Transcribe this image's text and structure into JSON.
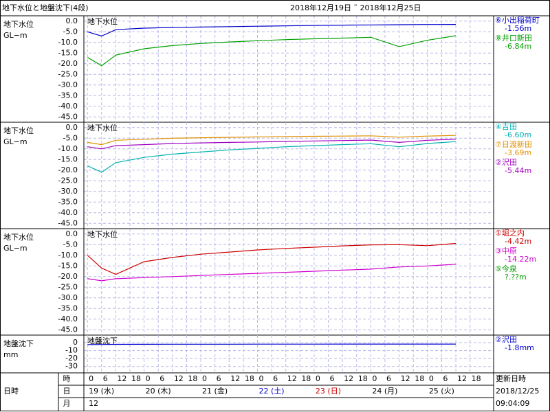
{
  "header": {
    "title": "地下水位と地盤沈下(4段)",
    "period": "2018年12月19日 ˜ 2018年12月25日"
  },
  "time_axis": {
    "xlim": [
      -1.5,
      172
    ],
    "x": [
      0,
      6,
      12,
      24,
      36,
      48,
      60,
      72,
      84,
      96,
      108,
      120,
      132,
      144,
      156
    ],
    "xticks": [
      0,
      6,
      12,
      18,
      {
        "value": 24,
        "label": "0"
      },
      {
        "value": 30,
        "label": "6"
      },
      {
        "value": 36,
        "label": "12"
      },
      {
        "value": 42,
        "label": "18"
      },
      {
        "value": 48,
        "label": "0"
      },
      {
        "value": 54,
        "label": "6"
      },
      {
        "value": 60,
        "label": "12"
      },
      {
        "value": 66,
        "label": "18"
      },
      {
        "value": 72,
        "label": "0"
      },
      {
        "value": 78,
        "label": "6"
      },
      {
        "value": 84,
        "label": "12"
      },
      {
        "value": 90,
        "label": "18"
      },
      {
        "value": 96,
        "label": "0"
      },
      {
        "value": 102,
        "label": "6"
      },
      {
        "value": 108,
        "label": "12"
      },
      {
        "value": 114,
        "label": "18"
      },
      {
        "value": 120,
        "label": "0"
      },
      {
        "value": 126,
        "label": "6"
      },
      {
        "value": 132,
        "label": "12"
      },
      {
        "value": 138,
        "label": "18"
      },
      {
        "value": 144,
        "label": "0"
      },
      {
        "value": 150,
        "label": "6"
      },
      {
        "value": 156,
        "label": "12"
      },
      {
        "value": 162,
        "label": "18"
      }
    ],
    "row_label": "日時",
    "rows": [
      "時",
      "日",
      "月"
    ],
    "days": [
      {
        "label": "19 (水)",
        "color": "#000000"
      },
      {
        "label": "20 (木)",
        "color": "#000000"
      },
      {
        "label": "21 (金)",
        "color": "#000000"
      },
      {
        "label": "22 (土)",
        "color": "#0000cc"
      },
      {
        "label": "23 (日)",
        "color": "#cc0000"
      },
      {
        "label": "24 (月)",
        "color": "#000000"
      },
      {
        "label": "25 (火)",
        "color": "#000000"
      }
    ],
    "month": "12"
  },
  "updated": {
    "label": "更新日時",
    "date": "2018/12/25",
    "time": "09:04:09"
  },
  "chart_data": [
    {
      "type": "line",
      "axis_label": [
        "地下水位",
        "GL−m"
      ],
      "inner_title": "地下水位",
      "ylim": [
        -47.5,
        2.5
      ],
      "grid": true,
      "yticks": [
        {
          "value": 0,
          "label": "0.0"
        },
        {
          "value": -5,
          "label": "-5.0"
        },
        {
          "value": -10,
          "label": "-10.0"
        },
        {
          "value": -15,
          "label": "-15.0"
        },
        {
          "value": -20,
          "label": "-20.0"
        },
        {
          "value": -25,
          "label": "-25.0"
        },
        {
          "value": -30,
          "label": "-30.0"
        },
        {
          "value": -35,
          "label": "-35.0"
        },
        {
          "value": -40,
          "label": "-40.0"
        },
        {
          "value": -45,
          "label": "-45.0"
        }
      ],
      "series": [
        {
          "name": "⑥小出稲荷町",
          "reading": "-1.56m",
          "color": "#0000cc",
          "values": [
            -5,
            -7,
            -4,
            -3.3,
            -3,
            -2.8,
            -2.6,
            -2.4,
            -2.2,
            -2.0,
            -1.9,
            -1.8,
            -1.7,
            -1.6,
            -1.56
          ]
        },
        {
          "name": "⑧井口新田",
          "reading": "-6.84m",
          "color": "#00a000",
          "values": [
            -17,
            -21,
            -16,
            -13,
            -11.5,
            -10.5,
            -9.8,
            -9.2,
            -8.7,
            -8.3,
            -8,
            -7.6,
            -12,
            -9,
            -6.84
          ]
        }
      ]
    },
    {
      "type": "line",
      "axis_label": [
        "地下水位",
        "GL−m"
      ],
      "inner_title": "地下水位",
      "ylim": [
        -47.5,
        2.5
      ],
      "grid": true,
      "yticks": [
        {
          "value": 0,
          "label": "0.0"
        },
        {
          "value": -5,
          "label": "-5.0"
        },
        {
          "value": -10,
          "label": "-10.0"
        },
        {
          "value": -15,
          "label": "-15.0"
        },
        {
          "value": -20,
          "label": "-20.0"
        },
        {
          "value": -25,
          "label": "-25.0"
        },
        {
          "value": -30,
          "label": "-30.0"
        },
        {
          "value": -35,
          "label": "-35.0"
        },
        {
          "value": -40,
          "label": "-40.0"
        },
        {
          "value": -45,
          "label": "-45.0"
        }
      ],
      "series": [
        {
          "name": "④吉田",
          "reading": "-6.60m",
          "color": "#00b0b0",
          "values": [
            -18,
            -21,
            -16.5,
            -14,
            -12.5,
            -11.5,
            -10.5,
            -9.8,
            -9,
            -8.5,
            -8,
            -7.6,
            -9,
            -7.5,
            -6.6
          ]
        },
        {
          "name": "⑦日渡新田",
          "reading": "-3.69m",
          "color": "#e09000",
          "values": [
            -7,
            -8,
            -6,
            -5.5,
            -5,
            -4.8,
            -4.6,
            -4.4,
            -4.2,
            -4.1,
            -4,
            -3.9,
            -4.5,
            -4,
            -3.69
          ]
        },
        {
          "name": "②沢田",
          "reading": "-5.44m",
          "color": "#a000c0",
          "values": [
            -9,
            -10,
            -8.5,
            -8,
            -7.5,
            -7.2,
            -7,
            -6.8,
            -6.5,
            -6.3,
            -6.1,
            -5.9,
            -7,
            -6,
            -5.44
          ]
        }
      ]
    },
    {
      "type": "line",
      "axis_label": [
        "地下水位",
        "GL−m"
      ],
      "inner_title": "地下水位",
      "ylim": [
        -47.5,
        2.5
      ],
      "grid": true,
      "yticks": [
        {
          "value": 0,
          "label": "0.0"
        },
        {
          "value": -5,
          "label": "-5.0"
        },
        {
          "value": -10,
          "label": "-10.0"
        },
        {
          "value": -15,
          "label": "-15.0"
        },
        {
          "value": -20,
          "label": "-20.0"
        },
        {
          "value": -25,
          "label": "-25.0"
        },
        {
          "value": -30,
          "label": "-30.0"
        },
        {
          "value": -35,
          "label": "-35.0"
        },
        {
          "value": -40,
          "label": "-40.0"
        },
        {
          "value": -45,
          "label": "-45.0"
        }
      ],
      "series": [
        {
          "name": "①堀之内",
          "reading": "-4.42m",
          "color": "#cc0000",
          "values": [
            -10,
            -16,
            -19,
            -13,
            -11,
            -9.5,
            -8.5,
            -7.5,
            -6.8,
            -6.2,
            -5.6,
            -5.1,
            -5,
            -5.5,
            -4.42
          ]
        },
        {
          "name": "③中原",
          "reading": "-14.22m",
          "color": "#d000d0",
          "values": [
            -21,
            -22,
            -21,
            -20.5,
            -20,
            -19.5,
            -19,
            -18.5,
            -18,
            -17.5,
            -17,
            -16.5,
            -15.5,
            -15,
            -14.22
          ]
        },
        {
          "name": "⑤今泉",
          "reading": "?.??m",
          "color": "#00a000",
          "values": [
            null,
            null,
            null,
            null,
            null,
            null,
            null,
            null,
            null,
            null,
            null,
            null,
            null,
            null,
            null
          ]
        }
      ]
    },
    {
      "type": "line",
      "axis_label": [
        "地盤沈下",
        "mm"
      ],
      "inner_title": "地盤沈下",
      "ylim": [
        -38,
        9.5
      ],
      "grid": true,
      "yticks": [
        0,
        -10,
        -20,
        -30
      ],
      "series": [
        {
          "name": "②沢田",
          "reading": "-1.8mm",
          "color": "#0000cc",
          "values": [
            -2.5,
            -2.3,
            -2.2,
            -2.1,
            -2,
            -2,
            -2,
            -1.9,
            -1.9,
            -1.9,
            -1.8,
            -1.8,
            -1.8,
            -1.8,
            -1.8
          ]
        }
      ]
    }
  ]
}
